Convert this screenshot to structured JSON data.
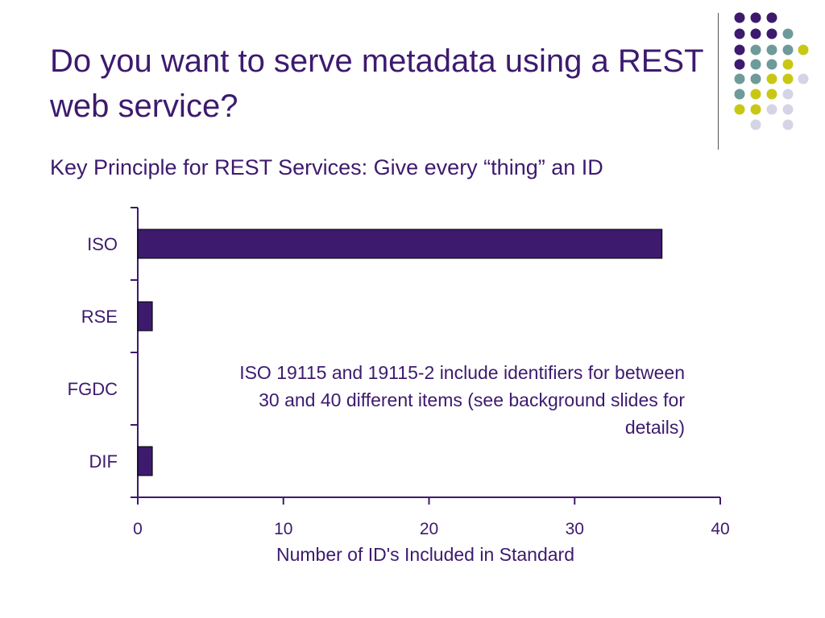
{
  "slide": {
    "title": "Do you want to serve metadata using a REST web service?",
    "subtitle": "Key Principle for REST Services: Give every “thing” an ID"
  },
  "decoration": {
    "dot_colors": [
      "#3d1a6e",
      "#6e9a9a",
      "#c8c814",
      "#d4d4e6"
    ]
  },
  "chart_data": {
    "type": "bar",
    "orientation": "horizontal",
    "categories": [
      "ISO",
      "RSE",
      "FGDC",
      "DIF"
    ],
    "values": [
      36,
      1,
      0,
      1
    ],
    "xlabel": "Number of ID's Included in Standard",
    "ylabel": "",
    "xlim": [
      0,
      40
    ],
    "xticks": [
      "0",
      "10",
      "20",
      "30",
      "40"
    ],
    "grid": false,
    "legend": "none",
    "bar_color": "#3d1a6e",
    "axis_color": "#3d1a6e",
    "annotation": "ISO 19115 and 19115-2 include identifiers for between 30 and 40 different items (see background slides for details)"
  }
}
